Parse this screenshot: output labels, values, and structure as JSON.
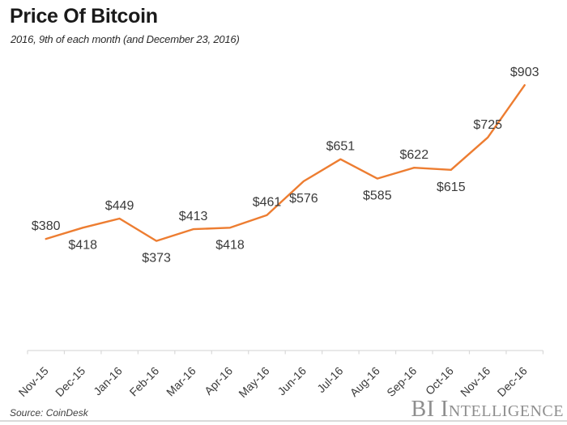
{
  "header": {
    "title": "Price Of Bitcoin",
    "subtitle": "2016, 9th of each month (and December 23, 2016)"
  },
  "chart_data": {
    "type": "line",
    "title": "Price Of Bitcoin",
    "subtitle": "2016, 9th of each month (and December 23, 2016)",
    "categories": [
      "Nov-15",
      "Dec-15",
      "Jan-16",
      "Feb-16",
      "Mar-16",
      "Apr-16",
      "May-16",
      "Jun-16",
      "Jul-16",
      "Aug-16",
      "Sep-16",
      "Oct-16",
      "Nov-16",
      "Dec-16"
    ],
    "values": [
      380,
      418,
      449,
      373,
      413,
      418,
      461,
      576,
      651,
      585,
      622,
      615,
      725,
      903
    ],
    "point_labels": [
      "$380",
      "$418",
      "$449",
      "$373",
      "$413",
      "$418",
      "$461",
      "$576",
      "$651",
      "$585",
      "$622",
      "$615",
      "$725",
      "$903"
    ],
    "label_side": [
      "above",
      "below",
      "above",
      "below",
      "above",
      "below",
      "above",
      "below",
      "above",
      "below",
      "above",
      "below",
      "above",
      "above"
    ],
    "xlabel": "",
    "ylabel": "",
    "ylim": [
      0,
      1000
    ],
    "grid": false,
    "legend": "none",
    "line_color": "#ED7D31",
    "axis_color": "#D9D9D9",
    "label_color": "#3A3A3A"
  },
  "footer": {
    "source": "Source: CoinDesk",
    "brand": "BI Intelligence"
  }
}
